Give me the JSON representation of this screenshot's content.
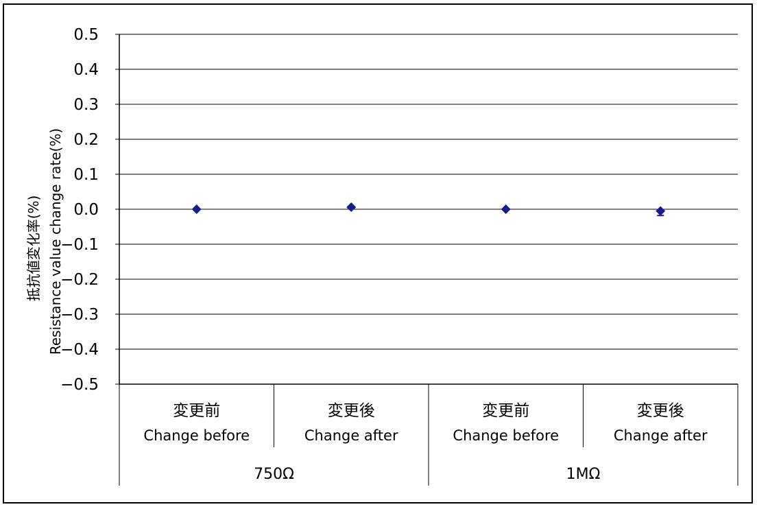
{
  "chart_data": {
    "type": "scatter",
    "ylabel_jp": "抵抗値変化率(%)",
    "ylabel_en": "Resistance value change rate(%)",
    "ylim": [
      -0.5,
      0.5
    ],
    "yticks": [
      "0.5",
      "0.4",
      "0.3",
      "0.2",
      "0.1",
      "0.0",
      "−0.1",
      "−0.2",
      "−0.3",
      "−0.4",
      "−0.5"
    ],
    "categories": [
      {
        "jp": "変更前",
        "en": "Change before"
      },
      {
        "jp": "変更後",
        "en": "Change after"
      },
      {
        "jp": "変更前",
        "en": "Change before"
      },
      {
        "jp": "変更後",
        "en": "Change after"
      }
    ],
    "groups": [
      "750Ω",
      "1MΩ"
    ],
    "values": [
      0.0,
      0.006,
      0.0,
      -0.005
    ],
    "error_high": [
      0.0,
      0.0,
      0.0,
      0.004
    ],
    "error_low": [
      0.0,
      0.0,
      0.0,
      -0.013
    ],
    "grid": true,
    "marker_color": "#1a1a8c"
  }
}
